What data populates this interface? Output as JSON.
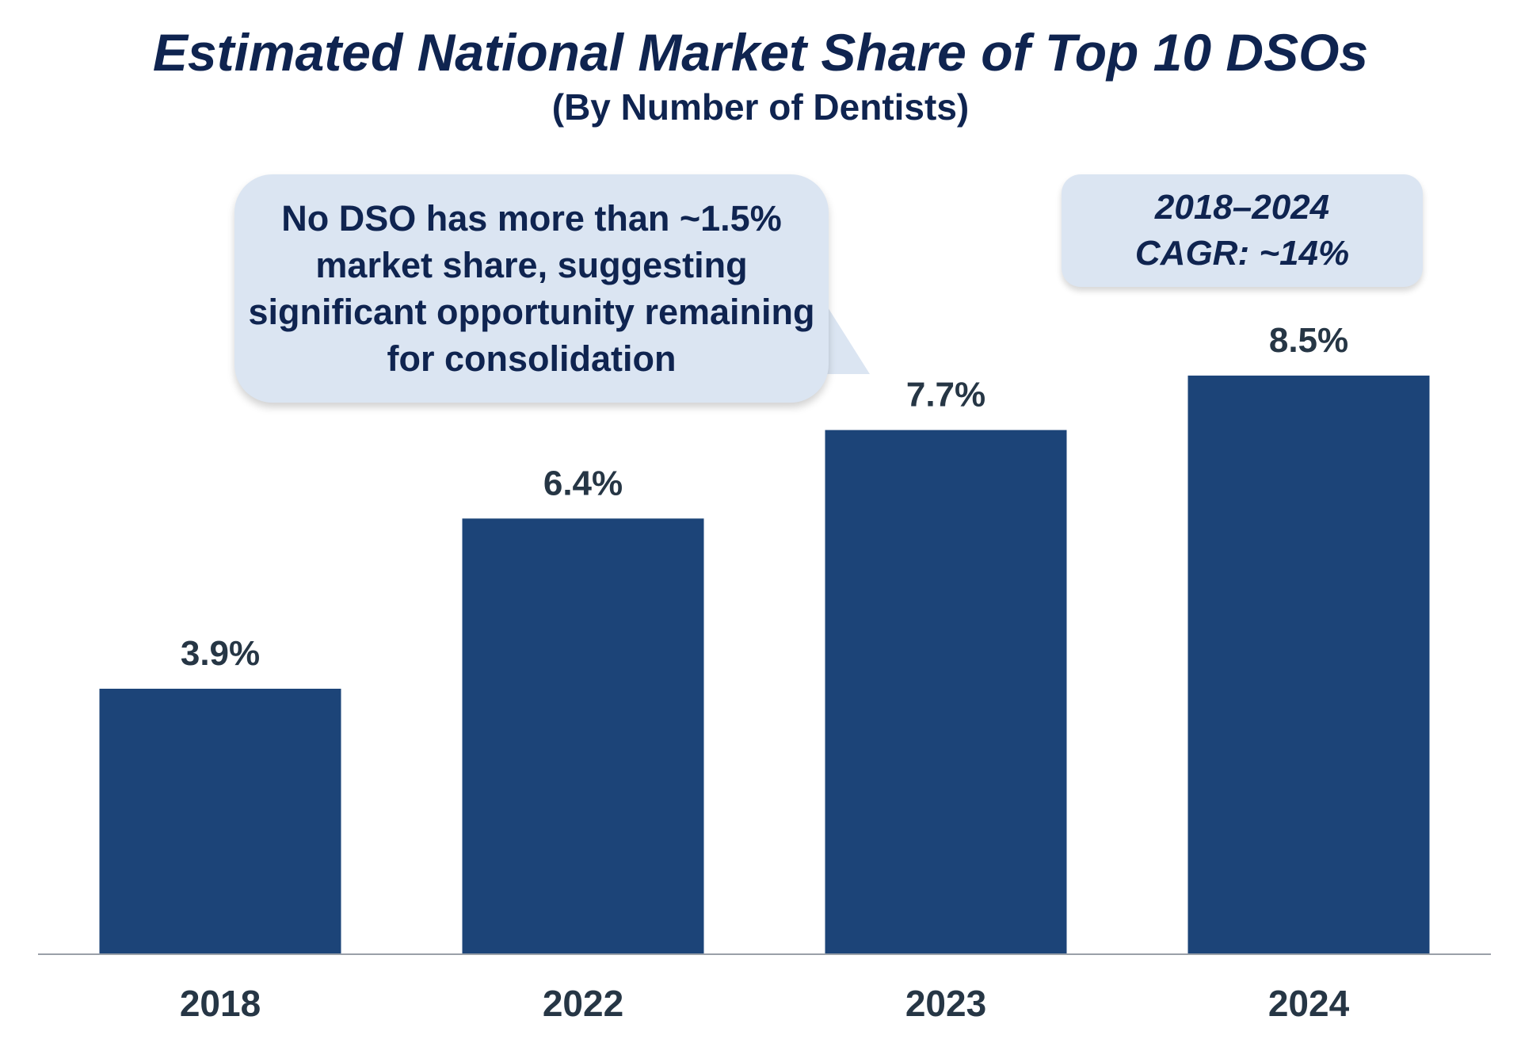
{
  "title": "Estimated National Market Share of Top 10 DSOs",
  "subtitle": "(By Number of Dentists)",
  "callout": "No DSO has more than ~1.5% market share, suggesting significant opportunity remaining for consolidation",
  "cagr_box": {
    "line1": "2018–2024",
    "line2": "CAGR: ~14%"
  },
  "colors": {
    "bar": "#1c4478",
    "title": "#0f2450",
    "label": "#263645",
    "callout_bg": "#dbe5f2",
    "axis": "#9aa0a8"
  },
  "chart_data": {
    "type": "bar",
    "categories": [
      "2018",
      "2022",
      "2023",
      "2024"
    ],
    "values": [
      3.9,
      6.4,
      7.7,
      8.5
    ],
    "value_labels": [
      "3.9%",
      "6.4%",
      "7.7%",
      "8.5%"
    ],
    "title": "Estimated National Market Share of Top 10 DSOs",
    "subtitle": "(By Number of Dentists)",
    "xlabel": "",
    "ylabel": "",
    "ylim": [
      0,
      10
    ],
    "grid": false,
    "legend": "none"
  }
}
